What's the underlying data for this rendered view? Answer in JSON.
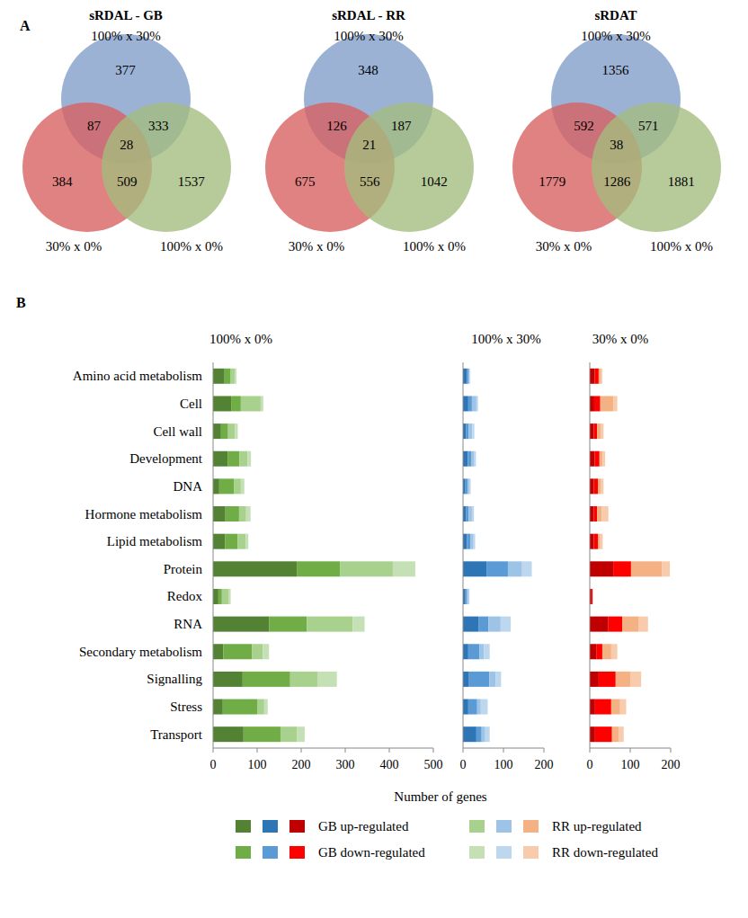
{
  "panel_labels": [
    "A",
    "B"
  ],
  "xlabel": "Number of genes",
  "chart_data": [
    {
      "type": "venn",
      "title": "sRDAL - GB",
      "sets": [
        {
          "name": "100% x 30%",
          "color": "#7f9cc9"
        },
        {
          "name": "30% x 0%",
          "color": "#d95f5f"
        },
        {
          "name": "100% x 0%",
          "color": "#a3bd7e"
        }
      ],
      "regions": [
        {
          "sets": [
            0
          ],
          "value": 377
        },
        {
          "sets": [
            1
          ],
          "value": 384
        },
        {
          "sets": [
            2
          ],
          "value": 1537
        },
        {
          "sets": [
            0,
            1
          ],
          "value": 87
        },
        {
          "sets": [
            0,
            2
          ],
          "value": 333
        },
        {
          "sets": [
            1,
            2
          ],
          "value": 509
        },
        {
          "sets": [
            0,
            1,
            2
          ],
          "value": 28
        }
      ]
    },
    {
      "type": "venn",
      "title": "sRDAL - RR",
      "sets": [
        {
          "name": "100% x 30%",
          "color": "#7f9cc9"
        },
        {
          "name": "30% x 0%",
          "color": "#d95f5f"
        },
        {
          "name": "100% x 0%",
          "color": "#a3bd7e"
        }
      ],
      "regions": [
        {
          "sets": [
            0
          ],
          "value": 348
        },
        {
          "sets": [
            1
          ],
          "value": 675
        },
        {
          "sets": [
            2
          ],
          "value": 1042
        },
        {
          "sets": [
            0,
            1
          ],
          "value": 126
        },
        {
          "sets": [
            0,
            2
          ],
          "value": 187
        },
        {
          "sets": [
            1,
            2
          ],
          "value": 556
        },
        {
          "sets": [
            0,
            1,
            2
          ],
          "value": 21
        }
      ]
    },
    {
      "type": "venn",
      "title": "sRDAT",
      "sets": [
        {
          "name": "100% x 30%",
          "color": "#7f9cc9"
        },
        {
          "name": "30% x 0%",
          "color": "#d95f5f"
        },
        {
          "name": "100% x 0%",
          "color": "#a3bd7e"
        }
      ],
      "regions": [
        {
          "sets": [
            0
          ],
          "value": 1356
        },
        {
          "sets": [
            1
          ],
          "value": 1779
        },
        {
          "sets": [
            2
          ],
          "value": 1881
        },
        {
          "sets": [
            0,
            1
          ],
          "value": 592
        },
        {
          "sets": [
            0,
            2
          ],
          "value": 571
        },
        {
          "sets": [
            1,
            2
          ],
          "value": 1286
        },
        {
          "sets": [
            0,
            1,
            2
          ],
          "value": 38
        }
      ]
    },
    {
      "type": "bar",
      "orientation": "horizontal",
      "stacked": true,
      "title": "100% x 0%",
      "categories": [
        "Amino acid metabolism",
        "Cell",
        "Cell wall",
        "Development",
        "DNA",
        "Hormone metabolism",
        "Lipid metabolism",
        "Protein",
        "Redox",
        "RNA",
        "Secondary metabolism",
        "Signalling",
        "Stress",
        "Transport"
      ],
      "series": [
        {
          "name": "GB up-regulated",
          "color": "#548235",
          "values": [
            26,
            41,
            18,
            33,
            14,
            28,
            27,
            190,
            12,
            127,
            23,
            67,
            22,
            69
          ]
        },
        {
          "name": "GB down-regulated",
          "color": "#70ad47",
          "values": [
            14,
            22,
            16,
            27,
            33,
            31,
            29,
            98,
            8,
            86,
            65,
            108,
            78,
            84
          ]
        },
        {
          "name": "RR up-regulated",
          "color": "#a9d18e",
          "values": [
            10,
            45,
            16,
            18,
            16,
            16,
            18,
            120,
            16,
            104,
            25,
            63,
            16,
            37
          ]
        },
        {
          "name": "RR down-regulated",
          "color": "#c5e0b4",
          "values": [
            3,
            6,
            6,
            8,
            8,
            10,
            6,
            51,
            4,
            27,
            14,
            43,
            8,
            18
          ]
        }
      ],
      "xlim": [
        0,
        500
      ],
      "xticks": [
        0,
        100,
        200,
        300,
        400,
        500
      ]
    },
    {
      "type": "bar",
      "orientation": "horizontal",
      "stacked": true,
      "title": "100% x 30%",
      "tick_labels": "x",
      "categories": [
        null,
        null,
        null,
        null,
        null,
        null,
        null,
        null,
        null,
        null,
        null,
        null,
        null,
        null
      ],
      "series": [
        {
          "color": "#2e75b6",
          "values": [
            10,
            13,
            8,
            12,
            6,
            8,
            10,
            58,
            6,
            38,
            13,
            15,
            13,
            33
          ]
        },
        {
          "color": "#5b9bd5",
          "values": [
            4,
            9,
            6,
            8,
            6,
            6,
            8,
            53,
            4,
            25,
            28,
            50,
            22,
            13
          ]
        },
        {
          "color": "#9dc3e6",
          "values": [
            2,
            11,
            9,
            8,
            4,
            8,
            8,
            35,
            4,
            30,
            11,
            16,
            9,
            9
          ]
        },
        {
          "color": "#bdd7ee",
          "values": [
            2,
            4,
            5,
            4,
            3,
            5,
            4,
            24,
            2,
            25,
            14,
            13,
            17,
            11
          ]
        }
      ],
      "xlim": [
        0,
        200
      ],
      "xticks": [
        0,
        100,
        200
      ]
    },
    {
      "type": "bar",
      "orientation": "horizontal",
      "stacked": true,
      "title": "30% x 0%",
      "tick_labels": "x",
      "categories": [
        null,
        null,
        null,
        null,
        null,
        null,
        null,
        null,
        null,
        null,
        null,
        null,
        null,
        null
      ],
      "series": [
        {
          "color": "#c00000",
          "values": [
            12,
            11,
            10,
            12,
            10,
            10,
            10,
            58,
            4,
            46,
            16,
            22,
            13,
            13
          ]
        },
        {
          "color": "#ff0000",
          "values": [
            10,
            15,
            8,
            12,
            10,
            8,
            10,
            44,
            3,
            34,
            15,
            42,
            40,
            42
          ]
        },
        {
          "color": "#f4b183",
          "values": [
            6,
            33,
            10,
            8,
            8,
            12,
            6,
            76,
            0,
            40,
            22,
            36,
            22,
            16
          ]
        },
        {
          "color": "#f8cbad",
          "values": [
            3,
            9,
            6,
            6,
            6,
            16,
            6,
            20,
            0,
            24,
            15,
            27,
            15,
            13
          ]
        }
      ],
      "xlim": [
        0,
        200
      ],
      "xticks": [
        0,
        100,
        200
      ]
    }
  ]
}
